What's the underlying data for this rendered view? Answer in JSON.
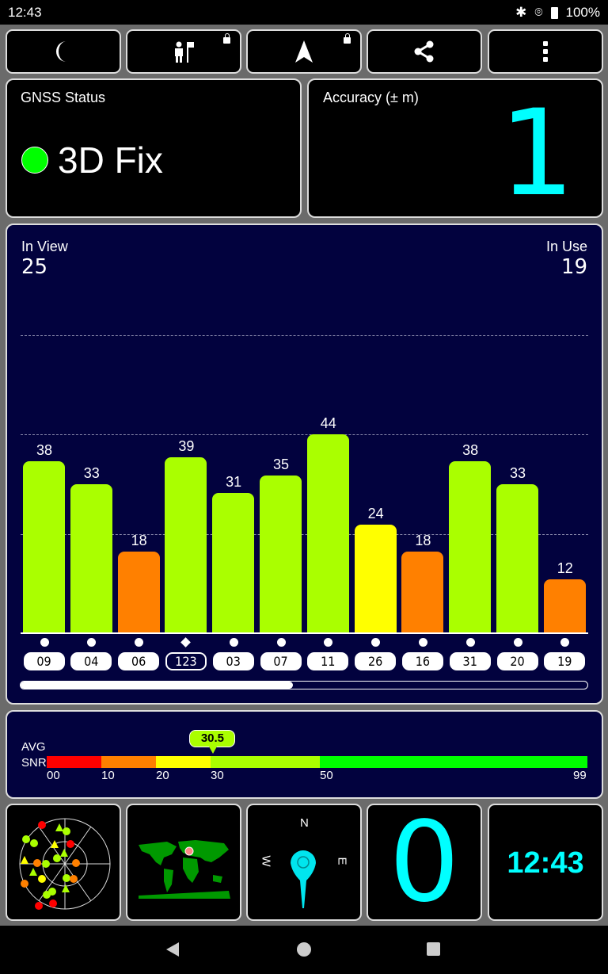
{
  "status_bar": {
    "time": "12:43",
    "battery": "100%",
    "icons": [
      "bluetooth-icon",
      "location-icon",
      "battery-icon"
    ]
  },
  "toolbar": {
    "buttons": [
      {
        "icon": "moon-icon"
      },
      {
        "icon": "person-flag-icon",
        "locked": true
      },
      {
        "icon": "navigation-arrow-icon",
        "locked": true
      },
      {
        "icon": "share-icon"
      },
      {
        "icon": "more-vert-icon"
      }
    ]
  },
  "gnss": {
    "label": "GNSS Status",
    "value": "3D Fix",
    "indicator_color": "#00ff00"
  },
  "accuracy": {
    "label": "Accuracy (± m)",
    "value": "1",
    "color": "#00ffff"
  },
  "satellites": {
    "in_view_label": "In View",
    "in_view": "25",
    "in_use_label": "In Use",
    "in_use": "19",
    "scroll_position": 0.48
  },
  "chart_data": {
    "type": "bar",
    "categories": [
      "09",
      "04",
      "06",
      "123",
      "03",
      "07",
      "11",
      "26",
      "16",
      "31",
      "20",
      "19"
    ],
    "values": [
      38,
      33,
      18,
      39,
      31,
      35,
      44,
      24,
      18,
      38,
      33,
      12
    ],
    "markers": [
      "circle",
      "circle",
      "circle",
      "diamond",
      "circle",
      "circle",
      "circle",
      "circle",
      "circle",
      "circle",
      "circle",
      "circle"
    ],
    "highlighted": [
      "123"
    ],
    "ylim": [
      0,
      70
    ],
    "grid": true,
    "colors": {
      "low": "#ff8000",
      "mid": "#ffff00",
      "high": "#aaff00"
    }
  },
  "snr": {
    "label_line1": "AVG",
    "label_line2": "SNR",
    "avg": "30.5",
    "avg_value": 30.5,
    "ticks": [
      "00",
      "10",
      "20",
      "30",
      "50",
      "99"
    ],
    "segments": [
      {
        "from": 0,
        "to": 10,
        "color": "#ff0000"
      },
      {
        "from": 10,
        "to": 20,
        "color": "#ff8000"
      },
      {
        "from": 20,
        "to": 30,
        "color": "#ffff00"
      },
      {
        "from": 30,
        "to": 50,
        "color": "#aaff00"
      },
      {
        "from": 50,
        "to": 99,
        "color": "#00ff00"
      }
    ]
  },
  "tiles": {
    "compass": {
      "n": "N",
      "e": "E",
      "w": "W"
    },
    "speed": "0",
    "clock": "12:43",
    "accent": "#00ffff"
  }
}
